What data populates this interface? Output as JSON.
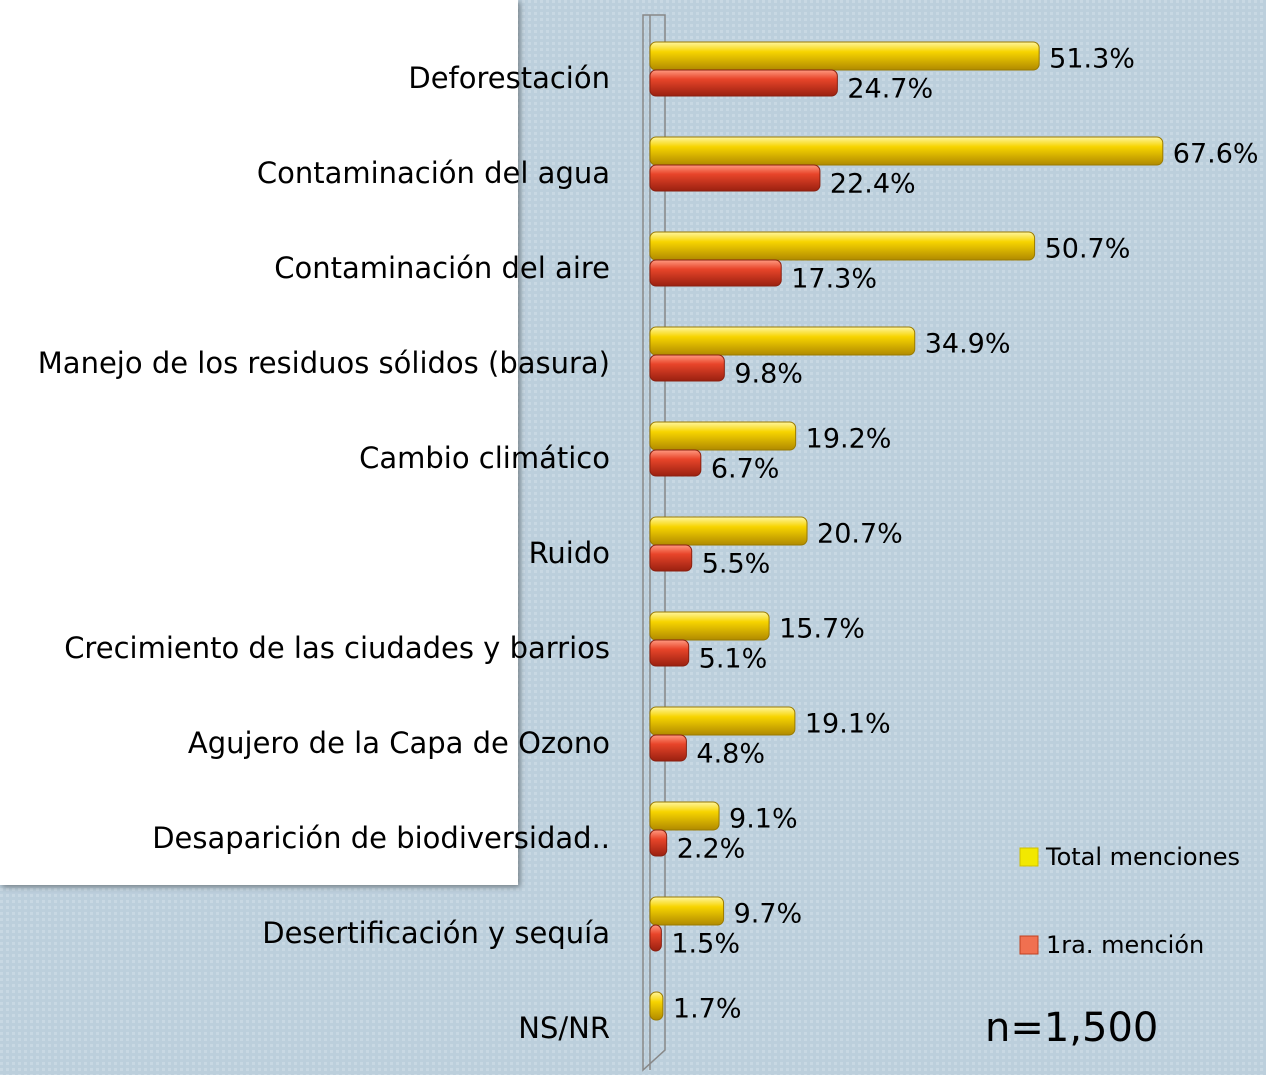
{
  "chart_data": {
    "type": "bar",
    "orientation": "horizontal",
    "categories": [
      "Deforestación",
      "Contaminación del agua",
      "Contaminación del aire",
      "Manejo de los residuos sólidos (basura)",
      "Cambio climático",
      "Ruido",
      "Crecimiento de las ciudades y barrios",
      "Agujero de la Capa de Ozono",
      "Desaparición de biodiversidad..",
      "Desertificación y sequía",
      "NS/NR"
    ],
    "series": [
      {
        "name": "Total menciones",
        "color": "#f2c500",
        "values": [
          51.3,
          67.6,
          50.7,
          34.9,
          19.2,
          20.7,
          15.7,
          19.1,
          9.1,
          9.7,
          1.7
        ],
        "value_labels": [
          "51.3%",
          "67.6%",
          "50.7%",
          "34.9%",
          "19.2%",
          "20.7%",
          "15.7%",
          "19.1%",
          "9.1%",
          "9.7%",
          "1.7%"
        ]
      },
      {
        "name": "1ra. mención",
        "color": "#e8452a",
        "values": [
          24.7,
          22.4,
          17.3,
          9.8,
          6.7,
          5.5,
          5.1,
          4.8,
          2.2,
          1.5,
          null
        ],
        "value_labels": [
          "24.7%",
          "22.4%",
          "17.3%",
          "9.8%",
          "6.7%",
          "5.5%",
          "5.1%",
          "4.8%",
          "2.2%",
          "1.5%",
          null
        ]
      }
    ],
    "xlim": [
      0,
      70
    ],
    "annotation": "n=1,500"
  }
}
